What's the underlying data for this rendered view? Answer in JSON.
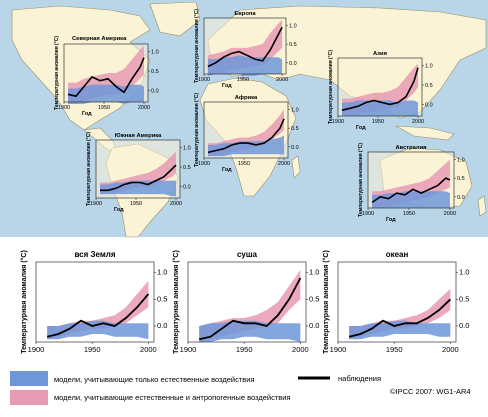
{
  "colors": {
    "ocean": "#b9d6e8",
    "land": "#fbf3d6",
    "land_stroke": "#9a8f6a",
    "natural_band": "#6f97d8",
    "combined_band": "#e79ab3",
    "observed": "#000000"
  },
  "legend": {
    "natural_label": "модели, учитывающие только естественные воздействия",
    "combined_label": "модели, учитывающие естественные и антропогенные воздействия",
    "observed_label": "наблюдения"
  },
  "credit": "©IPCC  2007: WG1-AR4",
  "chart_data": [
    {
      "id": "north-america",
      "type": "area",
      "title": "Северная Америка",
      "xlabel": "Год",
      "ylabel": "Температурная аномалия (°C)",
      "xticks": [
        "1900",
        "1950",
        "2000"
      ],
      "yticks": [
        "0.0",
        "0.5",
        "1.0"
      ],
      "xlim": [
        1900,
        2005
      ],
      "ylim": [
        -0.3,
        1.2
      ],
      "x": [
        1905,
        1915,
        1925,
        1935,
        1945,
        1955,
        1965,
        1975,
        1985,
        1995,
        2000
      ],
      "observed": [
        -0.1,
        -0.15,
        0.1,
        0.35,
        0.25,
        0.3,
        0.1,
        -0.05,
        0.3,
        0.6,
        0.85
      ],
      "combined_low": [
        -0.35,
        -0.35,
        -0.3,
        -0.2,
        -0.15,
        -0.1,
        -0.1,
        -0.05,
        0.1,
        0.3,
        0.4
      ],
      "combined_high": [
        0.2,
        0.2,
        0.3,
        0.35,
        0.4,
        0.45,
        0.45,
        0.55,
        0.8,
        1.05,
        1.15
      ],
      "natural_low": [
        -0.35,
        -0.35,
        -0.35,
        -0.3,
        -0.3,
        -0.3,
        -0.3,
        -0.35,
        -0.3,
        -0.3,
        -0.3
      ],
      "natural_high": [
        0.05,
        0.05,
        0.1,
        0.15,
        0.15,
        0.15,
        0.15,
        0.1,
        0.15,
        0.15,
        0.1
      ]
    },
    {
      "id": "europe",
      "type": "area",
      "title": "Европа",
      "xlabel": "Год",
      "ylabel": "Температурная аномалия (°C)",
      "xticks": [
        "1900",
        "1950",
        "2000"
      ],
      "yticks": [
        "0.0",
        "0.5",
        "1.0"
      ],
      "xlim": [
        1900,
        2005
      ],
      "ylim": [
        -0.3,
        1.2
      ],
      "x": [
        1905,
        1915,
        1925,
        1935,
        1945,
        1955,
        1965,
        1975,
        1985,
        1995,
        2000
      ],
      "observed": [
        -0.1,
        0.0,
        0.15,
        0.25,
        0.3,
        0.2,
        0.1,
        0.05,
        0.35,
        0.75,
        0.95
      ],
      "combined_low": [
        -0.35,
        -0.3,
        -0.25,
        -0.2,
        -0.15,
        -0.15,
        -0.1,
        -0.05,
        0.1,
        0.3,
        0.4
      ],
      "combined_high": [
        0.2,
        0.25,
        0.3,
        0.4,
        0.4,
        0.4,
        0.45,
        0.5,
        0.8,
        1.05,
        1.15
      ],
      "natural_low": [
        -0.35,
        -0.3,
        -0.3,
        -0.3,
        -0.3,
        -0.35,
        -0.35,
        -0.3,
        -0.3,
        -0.3,
        -0.3
      ],
      "natural_high": [
        0.1,
        0.1,
        0.15,
        0.15,
        0.2,
        0.15,
        0.15,
        0.15,
        0.15,
        0.15,
        0.1
      ]
    },
    {
      "id": "asia",
      "type": "area",
      "title": "Азия",
      "xlabel": "Год",
      "ylabel": "Температурная аномалия (°C)",
      "xticks": [
        "1900",
        "1950",
        "2000"
      ],
      "yticks": [
        "0.0",
        "0.5",
        "1.0"
      ],
      "xlim": [
        1900,
        2005
      ],
      "ylim": [
        -0.3,
        1.2
      ],
      "x": [
        1905,
        1915,
        1925,
        1935,
        1945,
        1955,
        1965,
        1975,
        1985,
        1995,
        2000
      ],
      "observed": [
        -0.15,
        -0.1,
        -0.05,
        0.05,
        0.1,
        0.05,
        0.0,
        0.05,
        0.2,
        0.6,
        0.95
      ],
      "combined_low": [
        -0.3,
        -0.3,
        -0.25,
        -0.2,
        -0.2,
        -0.15,
        -0.1,
        -0.05,
        0.1,
        0.3,
        0.45
      ],
      "combined_high": [
        0.15,
        0.15,
        0.2,
        0.25,
        0.3,
        0.3,
        0.35,
        0.45,
        0.7,
        0.95,
        1.05
      ],
      "natural_low": [
        -0.3,
        -0.3,
        -0.3,
        -0.3,
        -0.3,
        -0.3,
        -0.3,
        -0.3,
        -0.3,
        -0.3,
        -0.3
      ],
      "natural_high": [
        0.05,
        0.05,
        0.1,
        0.1,
        0.1,
        0.1,
        0.1,
        0.05,
        0.1,
        0.1,
        0.05
      ]
    },
    {
      "id": "africa",
      "type": "area",
      "title": "Африка",
      "xlabel": "Год",
      "ylabel": "Температурная аномалия (°C)",
      "xticks": [
        "1900",
        "1950",
        "2000"
      ],
      "yticks": [
        "0.0",
        "0.5",
        "1.0"
      ],
      "xlim": [
        1900,
        2005
      ],
      "ylim": [
        -0.3,
        1.2
      ],
      "x": [
        1905,
        1915,
        1925,
        1935,
        1945,
        1955,
        1965,
        1975,
        1985,
        1995,
        2000
      ],
      "observed": [
        -0.15,
        -0.1,
        -0.05,
        0.05,
        0.1,
        0.1,
        0.05,
        0.1,
        0.25,
        0.5,
        0.75
      ],
      "combined_low": [
        -0.25,
        -0.25,
        -0.2,
        -0.15,
        -0.1,
        -0.05,
        0.0,
        0.05,
        0.2,
        0.35,
        0.45
      ],
      "combined_high": [
        0.1,
        0.1,
        0.15,
        0.2,
        0.25,
        0.25,
        0.3,
        0.4,
        0.6,
        0.85,
        1.0
      ],
      "natural_low": [
        -0.25,
        -0.25,
        -0.25,
        -0.2,
        -0.2,
        -0.2,
        -0.2,
        -0.2,
        -0.2,
        -0.2,
        -0.2
      ],
      "natural_high": [
        0.05,
        0.05,
        0.1,
        0.1,
        0.15,
        0.15,
        0.15,
        0.15,
        0.2,
        0.25,
        0.3
      ]
    },
    {
      "id": "south-america",
      "type": "area",
      "title": "Южная Америка",
      "xlabel": "Год",
      "ylabel": "Температурная аномалия (°C)",
      "xticks": [
        "1900",
        "1950",
        "2000"
      ],
      "yticks": [
        "0.0",
        "0.5",
        "1.0"
      ],
      "xlim": [
        1900,
        2005
      ],
      "ylim": [
        -0.3,
        1.2
      ],
      "x": [
        1905,
        1915,
        1925,
        1935,
        1945,
        1955,
        1965,
        1975,
        1985,
        1995,
        2000
      ],
      "observed": [
        -0.1,
        -0.1,
        -0.05,
        0.05,
        0.1,
        0.1,
        0.05,
        0.15,
        0.25,
        0.45,
        0.55
      ],
      "combined_low": [
        -0.2,
        -0.2,
        -0.15,
        -0.1,
        -0.05,
        0.0,
        0.0,
        0.05,
        0.15,
        0.25,
        0.35
      ],
      "combined_high": [
        0.1,
        0.1,
        0.15,
        0.2,
        0.25,
        0.3,
        0.35,
        0.45,
        0.6,
        0.8,
        0.9
      ],
      "natural_low": [
        -0.2,
        -0.2,
        -0.2,
        -0.2,
        -0.2,
        -0.2,
        -0.2,
        -0.2,
        -0.2,
        -0.25,
        -0.25
      ],
      "natural_high": [
        0.05,
        0.05,
        0.1,
        0.1,
        0.15,
        0.15,
        0.15,
        0.15,
        0.15,
        0.15,
        0.15
      ]
    },
    {
      "id": "australia",
      "type": "area",
      "title": "Австралия",
      "xlabel": "Год",
      "ylabel": "Температурная аномалия (°C)",
      "xticks": [
        "1900",
        "1950",
        "2000"
      ],
      "yticks": [
        "0.0",
        "0.5",
        "1.0"
      ],
      "xlim": [
        1900,
        2005
      ],
      "ylim": [
        -0.3,
        1.2
      ],
      "x": [
        1905,
        1915,
        1925,
        1935,
        1945,
        1955,
        1965,
        1975,
        1985,
        1995,
        2000
      ],
      "observed": [
        -0.15,
        0.0,
        -0.05,
        0.1,
        0.05,
        0.2,
        0.1,
        0.2,
        0.3,
        0.5,
        0.45
      ],
      "combined_low": [
        -0.3,
        -0.3,
        -0.25,
        -0.2,
        -0.15,
        -0.1,
        -0.05,
        0.0,
        0.1,
        0.2,
        0.25
      ],
      "combined_high": [
        0.15,
        0.15,
        0.2,
        0.25,
        0.3,
        0.35,
        0.4,
        0.5,
        0.7,
        0.9,
        1.0
      ],
      "natural_low": [
        -0.3,
        -0.3,
        -0.3,
        -0.3,
        -0.3,
        -0.3,
        -0.3,
        -0.3,
        -0.3,
        -0.3,
        -0.3
      ],
      "natural_high": [
        0.05,
        0.05,
        0.1,
        0.1,
        0.15,
        0.15,
        0.15,
        0.15,
        0.15,
        0.15,
        0.1
      ]
    },
    {
      "id": "global",
      "type": "area",
      "title": "вся Земля",
      "xlabel": "",
      "ylabel": "Температурная аномалия (°C)",
      "xticks": [
        "1900",
        "1950",
        "2000"
      ],
      "yticks": [
        "0.0",
        "0.5",
        "1.0"
      ],
      "xlim": [
        1900,
        2005
      ],
      "ylim": [
        -0.3,
        1.2
      ],
      "x": [
        1910,
        1920,
        1930,
        1940,
        1950,
        1960,
        1970,
        1980,
        1990,
        2000
      ],
      "observed": [
        -0.2,
        -0.15,
        -0.05,
        0.1,
        0.0,
        0.05,
        0.0,
        0.15,
        0.35,
        0.6
      ],
      "combined_low": [
        -0.25,
        -0.2,
        -0.15,
        -0.1,
        -0.05,
        -0.05,
        0.0,
        0.05,
        0.2,
        0.35
      ],
      "combined_high": [
        0.0,
        0.0,
        0.05,
        0.1,
        0.1,
        0.15,
        0.2,
        0.35,
        0.6,
        0.85
      ],
      "natural_low": [
        -0.25,
        -0.25,
        -0.2,
        -0.2,
        -0.15,
        -0.15,
        -0.2,
        -0.2,
        -0.2,
        -0.25
      ],
      "natural_high": [
        0.0,
        0.0,
        0.05,
        0.05,
        0.1,
        0.1,
        0.05,
        0.05,
        0.05,
        0.05
      ]
    },
    {
      "id": "land",
      "type": "area",
      "title": "суша",
      "xlabel": "",
      "ylabel": "Температурная аномалия (°C)",
      "xticks": [
        "1900",
        "1950",
        "2000"
      ],
      "yticks": [
        "0.0",
        "0.5",
        "1.0"
      ],
      "xlim": [
        1900,
        2005
      ],
      "ylim": [
        -0.3,
        1.2
      ],
      "x": [
        1910,
        1920,
        1930,
        1940,
        1950,
        1960,
        1970,
        1980,
        1990,
        2000
      ],
      "observed": [
        -0.25,
        -0.2,
        -0.05,
        0.1,
        0.05,
        0.05,
        0.0,
        0.2,
        0.5,
        0.9
      ],
      "combined_low": [
        -0.3,
        -0.25,
        -0.2,
        -0.15,
        -0.1,
        -0.05,
        0.0,
        0.05,
        0.3,
        0.5
      ],
      "combined_high": [
        0.0,
        0.05,
        0.1,
        0.15,
        0.15,
        0.2,
        0.3,
        0.45,
        0.75,
        1.05
      ],
      "natural_low": [
        -0.3,
        -0.3,
        -0.25,
        -0.25,
        -0.2,
        -0.2,
        -0.25,
        -0.25,
        -0.25,
        -0.3
      ],
      "natural_high": [
        0.0,
        0.05,
        0.05,
        0.1,
        0.1,
        0.1,
        0.05,
        0.05,
        0.05,
        0.05
      ]
    },
    {
      "id": "ocean",
      "type": "area",
      "title": "океан",
      "xlabel": "",
      "ylabel": "Температурная аномалия (°C)",
      "xticks": [
        "1900",
        "1950",
        "2000"
      ],
      "yticks": [
        "0.0",
        "0.5",
        "1.0"
      ],
      "xlim": [
        1900,
        2005
      ],
      "ylim": [
        -0.3,
        1.2
      ],
      "x": [
        1910,
        1920,
        1930,
        1940,
        1950,
        1960,
        1970,
        1980,
        1990,
        2000
      ],
      "observed": [
        -0.2,
        -0.15,
        -0.05,
        0.1,
        0.0,
        0.05,
        0.05,
        0.15,
        0.3,
        0.5
      ],
      "combined_low": [
        -0.25,
        -0.2,
        -0.15,
        -0.1,
        -0.05,
        -0.05,
        0.0,
        0.05,
        0.15,
        0.3
      ],
      "combined_high": [
        0.0,
        0.0,
        0.05,
        0.1,
        0.1,
        0.15,
        0.2,
        0.3,
        0.5,
        0.7
      ],
      "natural_low": [
        -0.25,
        -0.25,
        -0.2,
        -0.2,
        -0.15,
        -0.15,
        -0.15,
        -0.15,
        -0.2,
        -0.2
      ],
      "natural_high": [
        0.0,
        0.0,
        0.05,
        0.05,
        0.1,
        0.1,
        0.05,
        0.05,
        0.05,
        0.05
      ]
    }
  ]
}
